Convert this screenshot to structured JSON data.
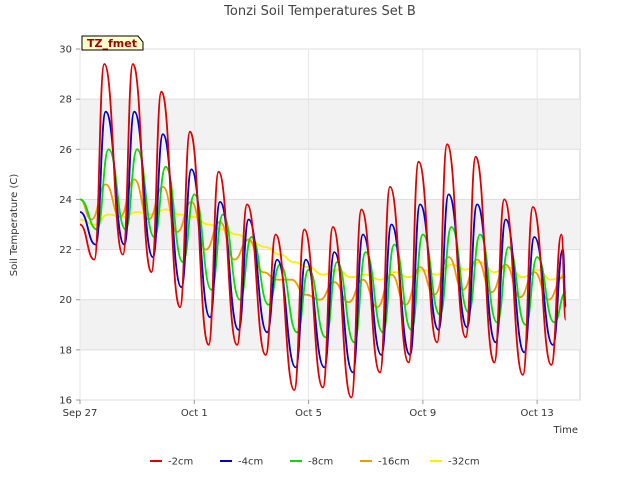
{
  "chart_data": {
    "type": "line",
    "title": "Tonzi Soil Temperatures Set B",
    "xlabel": "Time",
    "ylabel": "Soil Temperature (C)",
    "badge": "TZ_fmet",
    "xlim": [
      0,
      17.5
    ],
    "ylim": [
      16,
      30
    ],
    "yticks": [
      16,
      18,
      20,
      22,
      24,
      26,
      28,
      30
    ],
    "xticks": [
      {
        "value": 0,
        "label": "Sep 27"
      },
      {
        "value": 4,
        "label": "Oct 1"
      },
      {
        "value": 8,
        "label": "Oct 5"
      },
      {
        "value": 12,
        "label": "Oct 9"
      },
      {
        "value": 16,
        "label": "Oct 13"
      }
    ],
    "grid": true,
    "legend_position": "bottom",
    "series": [
      {
        "name": "-2cm",
        "color": "#dd0000",
        "x": [
          0.0,
          0.5,
          0.85,
          1.5,
          1.85,
          2.5,
          2.85,
          3.5,
          3.85,
          4.5,
          4.85,
          5.5,
          5.85,
          6.5,
          6.85,
          7.5,
          7.85,
          8.5,
          8.85,
          9.5,
          9.85,
          10.5,
          10.85,
          11.5,
          11.85,
          12.5,
          12.85,
          13.5,
          13.85,
          14.5,
          14.85,
          15.5,
          15.85,
          16.5,
          16.85,
          17.0
        ],
        "y": [
          23.0,
          21.6,
          29.4,
          21.8,
          29.4,
          21.1,
          28.3,
          19.7,
          26.7,
          18.2,
          25.1,
          18.2,
          23.8,
          17.8,
          22.6,
          16.4,
          22.8,
          16.5,
          22.9,
          16.1,
          23.6,
          17.1,
          24.5,
          17.5,
          25.5,
          18.3,
          26.2,
          18.5,
          25.7,
          17.5,
          24.0,
          17.0,
          23.7,
          17.4,
          22.6,
          19.2
        ]
      },
      {
        "name": "-4cm",
        "color": "#0000cc",
        "x": [
          0.0,
          0.55,
          0.9,
          1.55,
          1.9,
          2.55,
          2.9,
          3.55,
          3.9,
          4.55,
          4.9,
          5.55,
          5.9,
          6.55,
          6.9,
          7.55,
          7.9,
          8.55,
          8.9,
          9.55,
          9.9,
          10.55,
          10.9,
          11.55,
          11.9,
          12.55,
          12.9,
          13.55,
          13.9,
          14.55,
          14.9,
          15.55,
          15.9,
          16.55,
          16.9,
          17.0
        ],
        "y": [
          23.5,
          22.2,
          27.5,
          22.2,
          27.5,
          21.7,
          26.6,
          20.5,
          25.2,
          19.3,
          23.9,
          18.8,
          23.2,
          18.7,
          21.6,
          17.3,
          21.6,
          17.3,
          21.9,
          17.1,
          22.6,
          17.8,
          23.0,
          17.8,
          23.8,
          18.8,
          24.2,
          18.9,
          23.8,
          18.3,
          23.2,
          17.9,
          22.5,
          18.2,
          22.0,
          19.7
        ]
      },
      {
        "name": "-8cm",
        "color": "#00dd00",
        "x": [
          0.0,
          0.6,
          1.0,
          1.6,
          2.0,
          2.6,
          3.0,
          3.6,
          4.0,
          4.6,
          5.0,
          5.6,
          6.0,
          6.6,
          7.0,
          7.6,
          8.0,
          8.6,
          9.0,
          9.6,
          10.0,
          10.6,
          11.0,
          11.6,
          12.0,
          12.6,
          13.0,
          13.6,
          14.0,
          14.6,
          15.0,
          15.6,
          16.0,
          16.6,
          17.0
        ],
        "y": [
          24.0,
          22.8,
          26.0,
          22.8,
          26.0,
          22.5,
          25.3,
          21.5,
          24.2,
          20.4,
          23.4,
          20.0,
          22.5,
          19.8,
          21.4,
          18.7,
          21.2,
          18.5,
          21.5,
          18.3,
          21.9,
          18.7,
          22.2,
          18.8,
          22.6,
          19.4,
          22.9,
          19.5,
          22.6,
          19.1,
          22.1,
          19.0,
          21.7,
          19.1,
          20.3
        ]
      },
      {
        "name": "-16cm",
        "color": "#ee9900",
        "x": [
          0.0,
          0.4,
          0.9,
          1.4,
          1.9,
          2.4,
          2.9,
          3.4,
          3.9,
          4.4,
          4.9,
          5.4,
          5.9,
          6.4,
          6.9,
          7.4,
          7.9,
          8.4,
          8.9,
          9.4,
          9.9,
          10.4,
          10.9,
          11.4,
          11.9,
          12.4,
          12.9,
          13.4,
          13.9,
          14.4,
          14.9,
          15.4,
          15.9,
          16.4,
          16.9,
          17.0
        ],
        "y": [
          24.0,
          23.2,
          24.6,
          23.3,
          24.8,
          23.2,
          24.5,
          22.7,
          23.9,
          22.0,
          23.1,
          21.6,
          22.4,
          21.1,
          20.8,
          20.8,
          20.2,
          20.0,
          20.7,
          19.9,
          20.8,
          19.7,
          21.0,
          19.8,
          21.3,
          20.2,
          21.7,
          20.4,
          21.6,
          20.3,
          21.4,
          20.1,
          21.1,
          20.0,
          20.9,
          20.9
        ]
      },
      {
        "name": "-32cm",
        "color": "#ffee00",
        "x": [
          0.0,
          0.5,
          1.0,
          1.5,
          2.0,
          2.5,
          3.0,
          3.5,
          4.0,
          4.5,
          5.0,
          5.5,
          6.0,
          6.5,
          7.0,
          7.5,
          8.0,
          8.5,
          9.0,
          9.5,
          10.0,
          10.5,
          11.0,
          11.5,
          12.0,
          12.5,
          13.0,
          13.5,
          14.0,
          14.5,
          15.0,
          15.5,
          16.0,
          16.5,
          17.0
        ],
        "y": [
          23.2,
          23.0,
          23.4,
          23.3,
          23.5,
          23.4,
          23.6,
          23.4,
          23.3,
          23.0,
          22.8,
          22.6,
          22.3,
          22.1,
          21.8,
          21.5,
          21.3,
          21.0,
          21.2,
          20.9,
          21.0,
          20.8,
          21.1,
          20.9,
          21.2,
          21.0,
          21.4,
          21.2,
          21.5,
          21.1,
          21.3,
          20.9,
          21.2,
          20.8,
          21.0
        ]
      }
    ]
  }
}
